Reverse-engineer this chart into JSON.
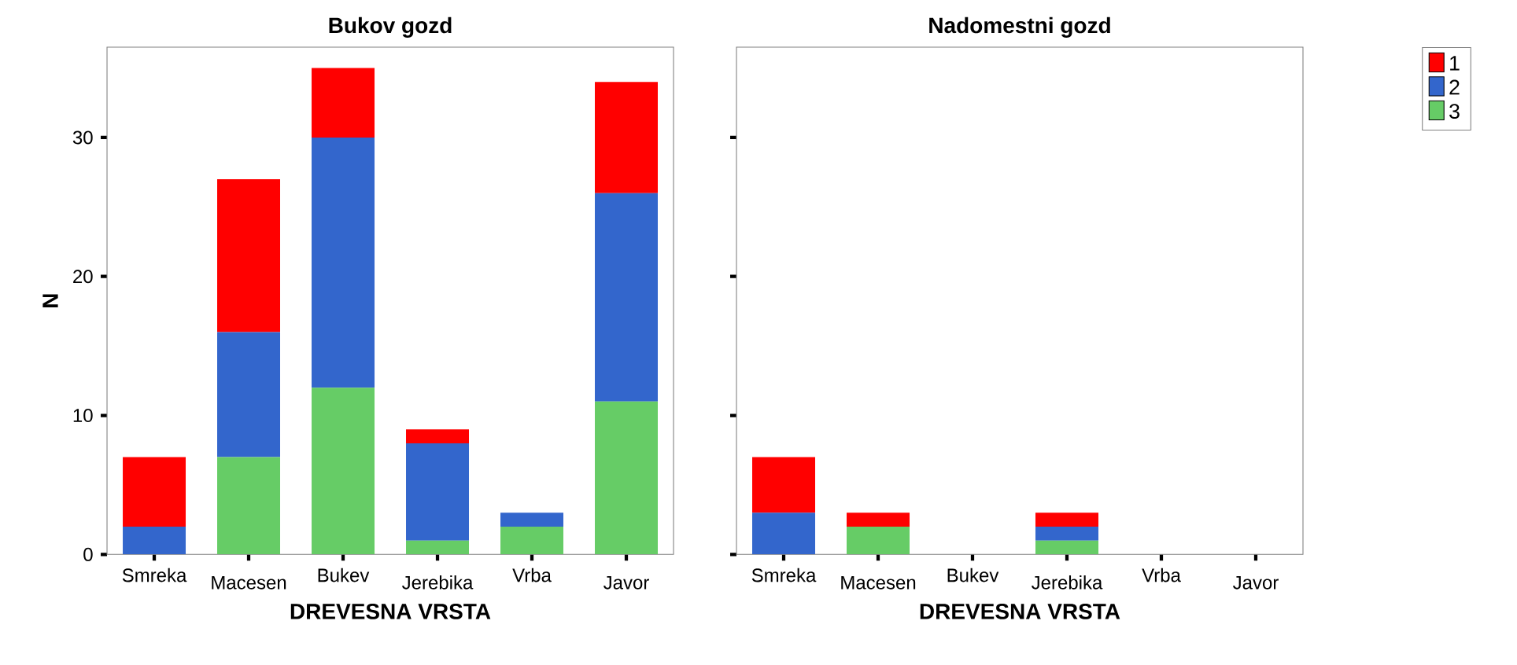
{
  "chart_data": [
    {
      "type": "bar",
      "title": "Bukov gozd",
      "xlabel": "DREVESNA VRSTA",
      "ylabel": "N",
      "stacked": true,
      "categories": [
        "Smreka",
        "Macesen",
        "Bukev",
        "Jerebika",
        "Vrba",
        "Javor"
      ],
      "series": [
        {
          "color": "#66cc66",
          "values": [
            0,
            7,
            12,
            1,
            2,
            11
          ]
        },
        {
          "color": "#3366cc",
          "values": [
            2,
            9,
            18,
            7,
            1,
            15
          ]
        },
        {
          "color": "#ff0000",
          "values": [
            5,
            11,
            5,
            1,
            0,
            8
          ]
        }
      ],
      "ylim": [
        0,
        36.5
      ],
      "yticks": [
        0,
        10,
        20,
        30
      ]
    },
    {
      "type": "bar",
      "title": "Nadomestni gozd",
      "xlabel": "DREVESNA VRSTA",
      "stacked": true,
      "legend": "right",
      "tick_labels": "x",
      "categories": [
        "Smreka",
        "Macesen",
        "Bukev",
        "Jerebika",
        "Vrba",
        "Javor"
      ],
      "series": [
        {
          "name": "3",
          "color": "#66cc66",
          "values": [
            0,
            2,
            0,
            1,
            0,
            0
          ]
        },
        {
          "name": "2",
          "color": "#3366cc",
          "values": [
            3,
            0,
            0,
            1,
            0,
            0
          ]
        },
        {
          "name": "1",
          "color": "#ff0000",
          "values": [
            4,
            1,
            0,
            1,
            0,
            0
          ]
        }
      ],
      "ylim": [
        0,
        36.5
      ],
      "yticks": [
        0,
        10,
        20,
        30
      ]
    }
  ]
}
